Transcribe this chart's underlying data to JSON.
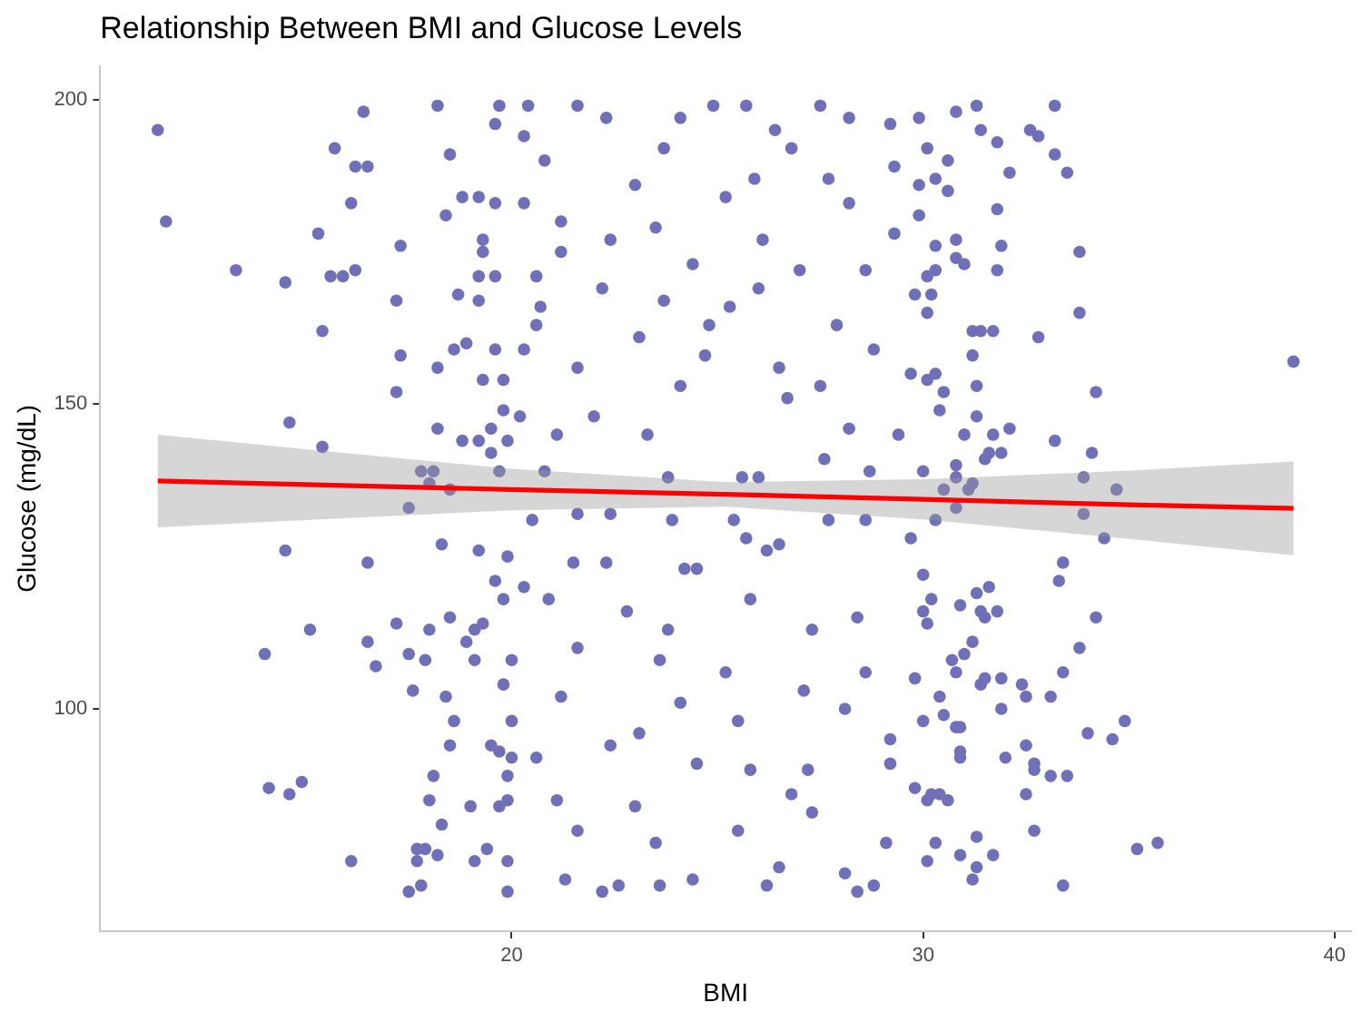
{
  "chart_data": {
    "type": "scatter",
    "title": "Relationship Between BMI and Glucose Levels",
    "xlabel": "BMI",
    "ylabel": "Glucose (mg/dL)",
    "xlim": [
      10,
      40.4
    ],
    "ylim": [
      63.5,
      205.5
    ],
    "xticks": [
      20,
      30,
      40
    ],
    "yticks": [
      100,
      150,
      200
    ],
    "series": [
      {
        "type": "scatter",
        "color": "#7070b8",
        "x": [
          11.4,
          11.6,
          16.4,
          15.7,
          16.2,
          16.5,
          18.2,
          19.7,
          19.6,
          18.5,
          16.1,
          15.3,
          13.3,
          14.5,
          15.6,
          15.9,
          16.2,
          17.3,
          17.2,
          15.4,
          17.3,
          17.2,
          14.6,
          15.4,
          18.8,
          19.2,
          19.6,
          18.4,
          19.3,
          19.3,
          19.2,
          19.6,
          18.7,
          19.2,
          18.6,
          18.9,
          19.6,
          18.2,
          19.3,
          19.8,
          19.8,
          18.2,
          18.8,
          19.2,
          19.5,
          19.5,
          19.9,
          17.8,
          18.1,
          18.0,
          18.5,
          19.7,
          17.5,
          14.5,
          16.5,
          18.3,
          19.2,
          19.9,
          19.6,
          19.8,
          15.1,
          14.0,
          16.5,
          16.7,
          17.2,
          18.0,
          18.5,
          19.1,
          19.3,
          18.9,
          17.5,
          17.9,
          19.1,
          17.6,
          18.4,
          19.8,
          18.6,
          18.5,
          19.5,
          14.1,
          14.6,
          14.9,
          18.1,
          18.0,
          19.0,
          19.7,
          18.3,
          16.1,
          17.7,
          17.9,
          17.7,
          18.2,
          19.4,
          19.1,
          17.5,
          17.8,
          19.9,
          20.0,
          20.0,
          19.7,
          20.0,
          19.9,
          19.9,
          19.9,
          20.4,
          21.6,
          24.9,
          25.7,
          27.5,
          22.3,
          24.1,
          28.2,
          20.3,
          26.4,
          26.8,
          29.2,
          20.8,
          23.7,
          29.3,
          25.9,
          23.0,
          27.7,
          29.9,
          20.3,
          25.2,
          28.2,
          21.2,
          23.5,
          26.1,
          29.3,
          22.4,
          21.2,
          24.4,
          27.0,
          20.6,
          22.2,
          26.0,
          28.6,
          20.7,
          23.7,
          25.3,
          30.1,
          20.6,
          23.1,
          24.8,
          27.9,
          20.3,
          24.7,
          26.5,
          28.8,
          21.6,
          24.1,
          27.5,
          29.7,
          20.2,
          22.0,
          23.3,
          26.7,
          28.2,
          29.4,
          21.1,
          25.6,
          26.0,
          27.6,
          20.8,
          23.8,
          28.7,
          30.0,
          29.9,
          30.8,
          31.3,
          33.2,
          32.6,
          32.8,
          31.4,
          31.8,
          33.2,
          32.1,
          33.5,
          30.1,
          30.6,
          30.3,
          30.6,
          29.9,
          31.8,
          30.8,
          31.9,
          33.8,
          30.3,
          30.8,
          31.0,
          31.8,
          30.1,
          30.3,
          29.8,
          30.2,
          33.8,
          31.2,
          31.4,
          31.7,
          32.8,
          31.2,
          39.0,
          30.1,
          30.3,
          30.5,
          30.4,
          31.3,
          31.3,
          34.2,
          31.0,
          31.7,
          32.1,
          33.2,
          34.1,
          31.5,
          31.6,
          31.9,
          30.8,
          30.8,
          33.9,
          34.7,
          30.5,
          31.1,
          31.2,
          33.9,
          34.4,
          33.4,
          33.3,
          30.3,
          30.8,
          29.7,
          30.0,
          31.3,
          31.6,
          30.2,
          30.0,
          30.1,
          30.9,
          31.4,
          31.8,
          31.5,
          34.2,
          33.8,
          31.2,
          31.0,
          30.7,
          30.8,
          33.4,
          29.8,
          31.5,
          31.4,
          31.9,
          32.4,
          32.5,
          33.1,
          31.9,
          30.4,
          30.5,
          30.0,
          34.9,
          34.0,
          34.6,
          30.8,
          30.9,
          32.5,
          32.0,
          30.9,
          30.9,
          32.7,
          32.7,
          33.1,
          33.5,
          32.5,
          29.8,
          30.2,
          30.4,
          30.6,
          30.1,
          32.7,
          30.3,
          31.3,
          35.2,
          35.7,
          30.1,
          30.9,
          31.7,
          31.3,
          31.2,
          33.4,
          20.5,
          21.6,
          22.4,
          23.9,
          25.4,
          27.7,
          28.6,
          21.5,
          22.3,
          24.2,
          24.5,
          25.7,
          26.2,
          26.5,
          27.3,
          20.3,
          20.9,
          22.8,
          23.8,
          25.8,
          28.4,
          21.6,
          23.6,
          25.2,
          27.1,
          28.6,
          21.2,
          23.1,
          24.1,
          25.5,
          28.1,
          29.2,
          20.6,
          22.4,
          24.5,
          25.8,
          27.2,
          29.2,
          21.1,
          23.0,
          25.5,
          26.8,
          27.3,
          21.6,
          23.5,
          26.5,
          28.1,
          29.1,
          21.3,
          22.2,
          22.6,
          23.6,
          24.4,
          26.2,
          28.4,
          28.8
        ],
        "values": [
          195,
          180,
          198,
          192,
          189,
          189,
          199,
          199,
          196,
          191,
          183,
          178,
          172,
          170,
          171,
          171,
          172,
          176,
          167,
          162,
          158,
          152,
          147,
          143,
          184,
          184,
          183,
          181,
          177,
          175,
          171,
          171,
          168,
          167,
          159,
          160,
          159,
          156,
          154,
          154,
          149,
          146,
          144,
          144,
          146,
          142,
          144,
          139,
          139,
          137,
          136,
          139,
          133,
          126,
          124,
          127,
          126,
          125,
          121,
          118,
          113,
          109,
          111,
          107,
          114,
          113,
          115,
          113,
          114,
          111,
          109,
          108,
          108,
          103,
          102,
          104,
          98,
          94,
          94,
          87,
          86,
          88,
          89,
          85,
          84,
          84,
          81,
          75,
          77,
          77,
          75,
          76,
          77,
          75,
          70,
          71,
          70,
          108,
          98,
          93,
          92,
          89,
          85,
          75,
          199,
          199,
          199,
          199,
          199,
          197,
          197,
          197,
          194,
          195,
          192,
          196,
          190,
          192,
          189,
          187,
          186,
          187,
          186,
          183,
          184,
          183,
          180,
          179,
          177,
          178,
          177,
          175,
          173,
          172,
          171,
          169,
          169,
          172,
          166,
          167,
          166,
          165,
          163,
          161,
          163,
          163,
          159,
          158,
          156,
          159,
          156,
          153,
          153,
          155,
          148,
          148,
          145,
          151,
          146,
          145,
          145,
          138,
          138,
          141,
          139,
          138,
          139,
          139,
          197,
          198,
          199,
          199,
          195,
          194,
          195,
          193,
          191,
          188,
          188,
          192,
          190,
          187,
          185,
          181,
          182,
          177,
          176,
          175,
          176,
          174,
          173,
          172,
          171,
          172,
          168,
          168,
          165,
          162,
          162,
          162,
          161,
          158,
          157,
          154,
          155,
          152,
          149,
          153,
          148,
          152,
          145,
          145,
          146,
          144,
          142,
          141,
          142,
          142,
          140,
          138,
          138,
          136,
          136,
          136,
          137,
          132,
          128,
          124,
          121,
          131,
          133,
          128,
          122,
          119,
          120,
          118,
          116,
          114,
          117,
          116,
          116,
          115,
          115,
          110,
          111,
          109,
          108,
          106,
          106,
          105,
          105,
          104,
          105,
          104,
          102,
          102,
          100,
          102,
          99,
          98,
          98,
          96,
          95,
          97,
          97,
          94,
          92,
          93,
          92,
          91,
          90,
          89,
          89,
          86,
          87,
          86,
          86,
          85,
          85,
          80,
          78,
          79,
          77,
          78,
          75,
          76,
          76,
          74,
          72,
          71,
          131,
          132,
          132,
          131,
          131,
          131,
          131,
          124,
          124,
          123,
          123,
          128,
          126,
          127,
          113,
          120,
          118,
          116,
          113,
          118,
          115,
          110,
          108,
          106,
          103,
          106,
          102,
          96,
          101,
          98,
          100,
          95,
          92,
          94,
          91,
          90,
          90,
          91,
          85,
          84,
          80,
          86,
          83,
          80,
          78,
          74,
          73,
          78,
          72,
          70,
          71,
          71,
          72,
          71,
          70,
          71
        ]
      },
      {
        "type": "line",
        "color": "#ff0000",
        "x": [
          11.4,
          15,
          20,
          25.2,
          30,
          35,
          39.0
        ],
        "values": [
          137.4,
          136.8,
          136.0,
          135.2,
          134.4,
          133.5,
          132.9
        ],
        "lower": [
          129.8,
          131.0,
          132.6,
          133.2,
          131.1,
          127.9,
          125.2
        ],
        "upper": [
          145.0,
          142.6,
          139.4,
          137.2,
          137.7,
          139.1,
          140.6
        ]
      }
    ]
  }
}
